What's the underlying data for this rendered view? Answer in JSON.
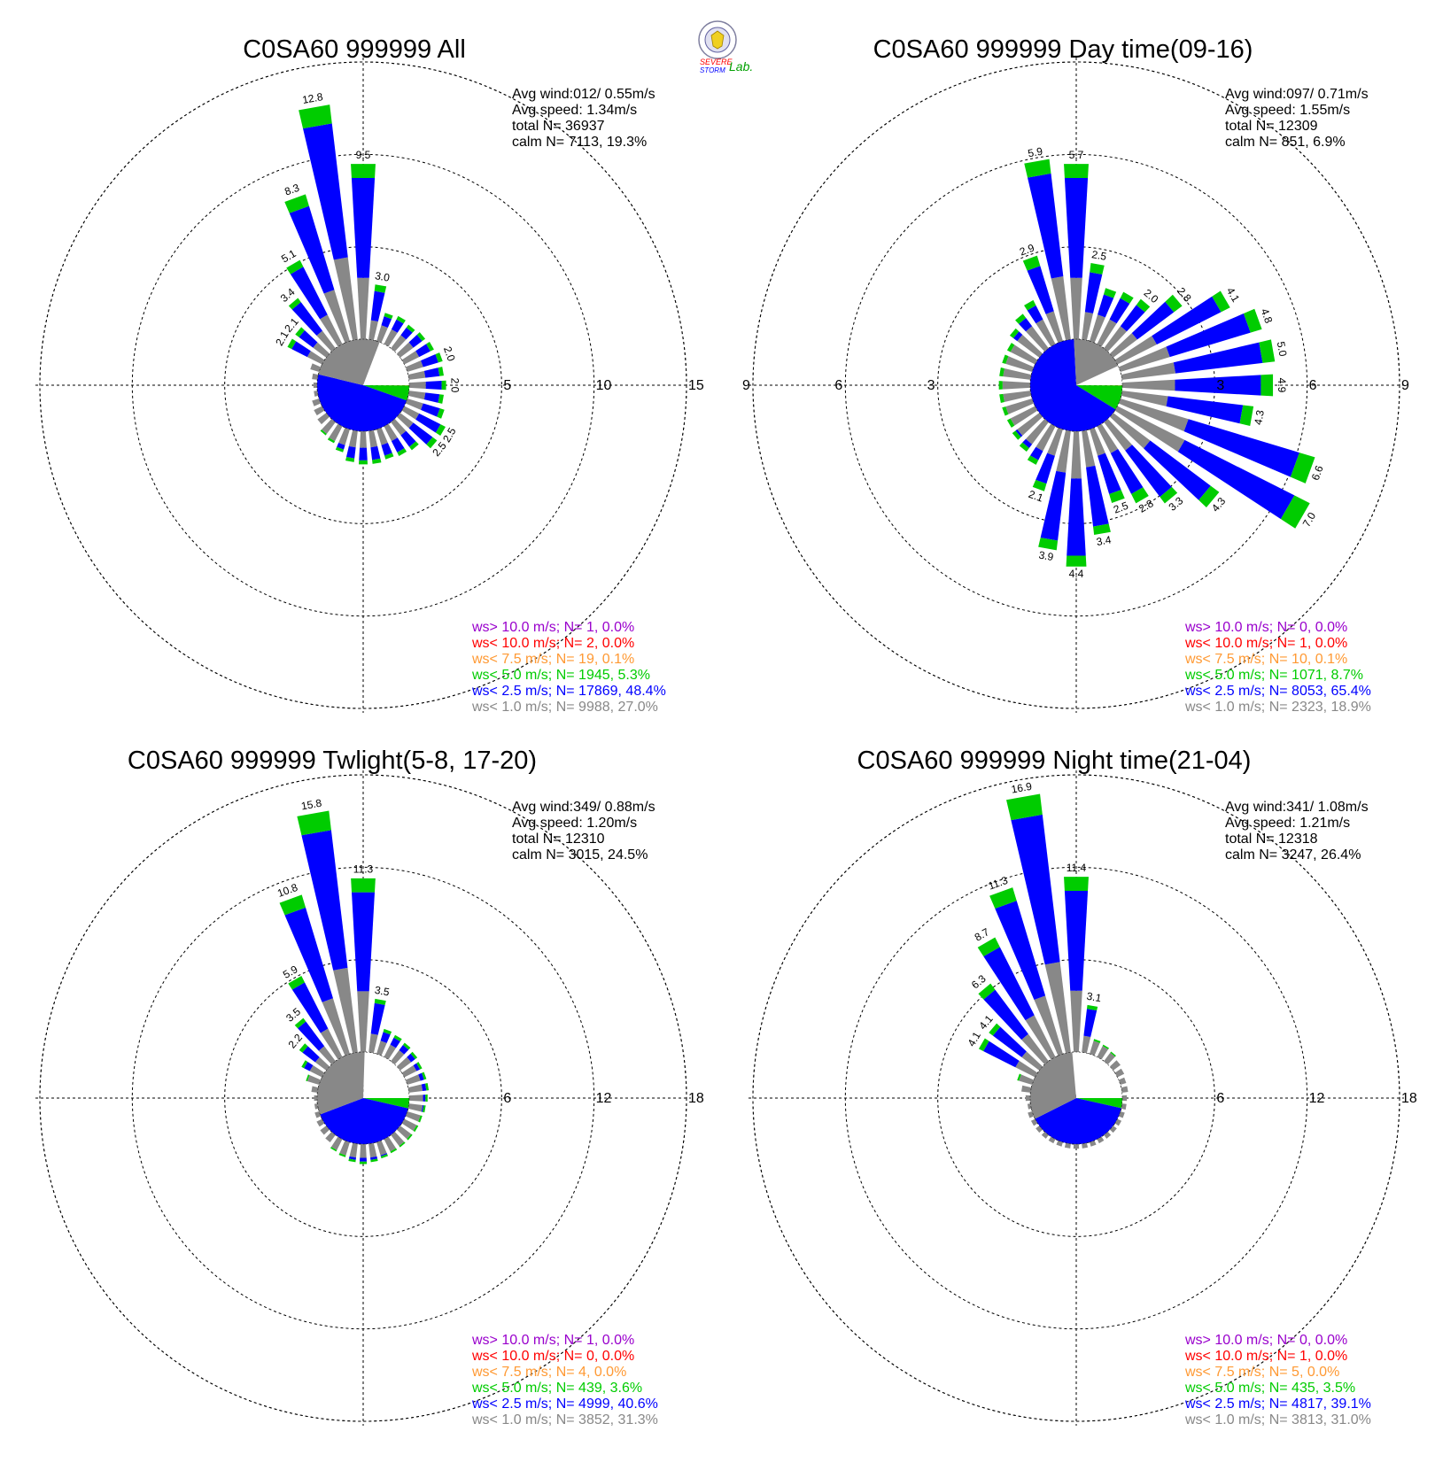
{
  "logo": {
    "text_line1": "SEVERE",
    "text_line2": "STORM",
    "text_lab": "Lab."
  },
  "colors": {
    "gt10": "#9900cc",
    "lt10": "#ff0000",
    "lt75": "#ff9933",
    "lt50": "#00cc00",
    "lt25": "#0000ff",
    "lt10ms": "#888888",
    "calm": "#ffffff",
    "grid": "#000000"
  },
  "chart_data": [
    {
      "type": "wind-rose",
      "title": "C0SA60 999999 All",
      "info": {
        "avg_wind": "Avg wind:012/ 0.55m/s",
        "avg_speed": "Avg speed: 1.34m/s",
        "total_n": "total N=       36937",
        "calm_n": "calm N=   7113,  19.3%"
      },
      "ring_values": [
        "5",
        "10",
        "15"
      ],
      "rmax": 15,
      "pie": {
        "gt10": 0.0,
        "lt10": 0.0,
        "lt75": 0.1,
        "lt50": 5.3,
        "lt25": 48.4,
        "lt10ms": 27.0,
        "calm": 19.3
      },
      "sectors": [
        {
          "dir": 0,
          "total": 9.5,
          "label": "9.5"
        },
        {
          "dir": 10,
          "total": 3.0,
          "label": "3.0"
        },
        {
          "dir": 20,
          "total": 1.6
        },
        {
          "dir": 30,
          "total": 1.7
        },
        {
          "dir": 40,
          "total": 1.6
        },
        {
          "dir": 50,
          "total": 1.7
        },
        {
          "dir": 60,
          "total": 1.8
        },
        {
          "dir": 70,
          "total": 2.0,
          "label": "2.0"
        },
        {
          "dir": 80,
          "total": 1.9
        },
        {
          "dir": 90,
          "total": 2.0,
          "label": "2.0"
        },
        {
          "dir": 100,
          "total": 1.9
        },
        {
          "dir": 110,
          "total": 2.1
        },
        {
          "dir": 120,
          "total": 2.5,
          "label": "2.5"
        },
        {
          "dir": 130,
          "total": 2.5,
          "label": "2.5"
        },
        {
          "dir": 140,
          "total": 1.9
        },
        {
          "dir": 150,
          "total": 1.8
        },
        {
          "dir": 160,
          "total": 1.7
        },
        {
          "dir": 170,
          "total": 1.8
        },
        {
          "dir": 180,
          "total": 1.8
        },
        {
          "dir": 190,
          "total": 1.7
        },
        {
          "dir": 200,
          "total": 1.3
        },
        {
          "dir": 210,
          "total": 1.0
        },
        {
          "dir": 220,
          "total": 0.8
        },
        {
          "dir": 230,
          "total": 0.6
        },
        {
          "dir": 240,
          "total": 0.5
        },
        {
          "dir": 250,
          "total": 0.4
        },
        {
          "dir": 260,
          "total": 0.2
        },
        {
          "dir": 270,
          "total": 0.2
        },
        {
          "dir": 280,
          "total": 0.3
        },
        {
          "dir": 290,
          "total": 0.5
        },
        {
          "dir": 300,
          "total": 2.1,
          "label": "2.1"
        },
        {
          "dir": 310,
          "total": 2.1,
          "label": "2.1"
        },
        {
          "dir": 320,
          "total": 3.4,
          "label": "3.4"
        },
        {
          "dir": 330,
          "total": 5.1,
          "label": "5.1"
        },
        {
          "dir": 340,
          "total": 8.3,
          "label": "8.3"
        },
        {
          "dir": 350,
          "total": 12.8,
          "label": "12.8"
        }
      ],
      "legend": [
        {
          "key": "gt10",
          "text": "ws> 10.0 m/s; N=     1,  0.0%"
        },
        {
          "key": "lt10",
          "text": "ws< 10.0 m/s; N=     2,  0.0%"
        },
        {
          "key": "lt75",
          "text": "ws<  7.5 m/s; N=    19,  0.1%"
        },
        {
          "key": "lt50",
          "text": "ws<  5.0 m/s; N=  1945,  5.3%"
        },
        {
          "key": "lt25",
          "text": "ws<  2.5 m/s; N= 17869, 48.4%"
        },
        {
          "key": "lt10ms",
          "text": "ws<  1.0 m/s; N=  9988, 27.0%"
        }
      ]
    },
    {
      "type": "wind-rose",
      "title": "C0SA60 999999 Day time(09-16)",
      "info": {
        "avg_wind": "Avg wind:097/ 0.71m/s",
        "avg_speed": "Avg speed: 1.55m/s",
        "total_n": "total N=       12309",
        "calm_n": "calm N=    851,   6.9%"
      },
      "ring_values": [
        "3",
        "6",
        "9"
      ],
      "rmax": 9,
      "pie": {
        "gt10": 0.0,
        "lt10": 0.0,
        "lt75": 0.1,
        "lt50": 8.7,
        "lt25": 65.4,
        "lt10ms": 18.9,
        "calm": 6.9
      },
      "sectors": [
        {
          "dir": 0,
          "total": 5.7,
          "label": "5.7"
        },
        {
          "dir": 10,
          "total": 2.5,
          "label": "2.5"
        },
        {
          "dir": 20,
          "total": 1.8
        },
        {
          "dir": 30,
          "total": 1.9
        },
        {
          "dir": 40,
          "total": 2.0,
          "label": "2.0"
        },
        {
          "dir": 50,
          "total": 2.8,
          "label": "2.8"
        },
        {
          "dir": 60,
          "total": 4.1,
          "label": "4.1"
        },
        {
          "dir": 70,
          "total": 4.8,
          "label": "4.8"
        },
        {
          "dir": 80,
          "total": 5.0,
          "label": "5.0"
        },
        {
          "dir": 90,
          "total": 4.9,
          "label": "4.9"
        },
        {
          "dir": 100,
          "total": 4.3,
          "label": "4.3"
        },
        {
          "dir": 110,
          "total": 6.6,
          "label": "6.6"
        },
        {
          "dir": 120,
          "total": 7.0,
          "label": "7.0"
        },
        {
          "dir": 130,
          "total": 4.3,
          "label": "4.3"
        },
        {
          "dir": 140,
          "total": 3.3,
          "label": "3.3"
        },
        {
          "dir": 150,
          "total": 2.8,
          "label": "2.8"
        },
        {
          "dir": 160,
          "total": 2.5,
          "label": "2.5"
        },
        {
          "dir": 170,
          "total": 3.4,
          "label": "3.4"
        },
        {
          "dir": 180,
          "total": 4.4,
          "label": "4.4"
        },
        {
          "dir": 190,
          "total": 3.9,
          "label": "3.9"
        },
        {
          "dir": 200,
          "total": 2.1,
          "label": "2.1"
        },
        {
          "dir": 210,
          "total": 1.4
        },
        {
          "dir": 220,
          "total": 1.2
        },
        {
          "dir": 230,
          "total": 1.1
        },
        {
          "dir": 240,
          "total": 1.0
        },
        {
          "dir": 250,
          "total": 1.0
        },
        {
          "dir": 260,
          "total": 1.0
        },
        {
          "dir": 270,
          "total": 1.0
        },
        {
          "dir": 280,
          "total": 1.0
        },
        {
          "dir": 290,
          "total": 1.0
        },
        {
          "dir": 300,
          "total": 1.0
        },
        {
          "dir": 310,
          "total": 1.2
        },
        {
          "dir": 320,
          "total": 1.4
        },
        {
          "dir": 330,
          "total": 1.6
        },
        {
          "dir": 340,
          "total": 2.9,
          "label": "2.9"
        },
        {
          "dir": 350,
          "total": 5.9,
          "label": "5.9"
        }
      ],
      "legend": [
        {
          "key": "gt10",
          "text": "ws> 10.0 m/s; N=     0,  0.0%"
        },
        {
          "key": "lt10",
          "text": "ws< 10.0 m/s; N=     1,  0.0%"
        },
        {
          "key": "lt75",
          "text": "ws<  7.5 m/s; N=    10,  0.1%"
        },
        {
          "key": "lt50",
          "text": "ws<  5.0 m/s; N=  1071,  8.7%"
        },
        {
          "key": "lt25",
          "text": "ws<  2.5 m/s; N=  8053, 65.4%"
        },
        {
          "key": "lt10ms",
          "text": "ws<  1.0 m/s; N=  2323, 18.9%"
        }
      ]
    },
    {
      "type": "wind-rose",
      "title": "C0SA60 999999 Twlight(5-8, 17-20)",
      "info": {
        "avg_wind": "Avg wind:349/ 0.88m/s",
        "avg_speed": "Avg speed: 1.20m/s",
        "total_n": "total N=       12310",
        "calm_n": "calm N=   3015,  24.5%"
      },
      "ring_values": [
        "6",
        "12",
        "18"
      ],
      "rmax": 18,
      "pie": {
        "gt10": 0.0,
        "lt10": 0.0,
        "lt75": 0.0,
        "lt50": 3.6,
        "lt25": 40.6,
        "lt10ms": 31.3,
        "calm": 24.5
      },
      "sectors": [
        {
          "dir": 0,
          "total": 11.3,
          "label": "11.3"
        },
        {
          "dir": 10,
          "total": 3.5,
          "label": "3.5"
        },
        {
          "dir": 20,
          "total": 1.7
        },
        {
          "dir": 30,
          "total": 1.6
        },
        {
          "dir": 40,
          "total": 1.5
        },
        {
          "dir": 50,
          "total": 1.4
        },
        {
          "dir": 60,
          "total": 1.3
        },
        {
          "dir": 70,
          "total": 1.3
        },
        {
          "dir": 80,
          "total": 1.3
        },
        {
          "dir": 90,
          "total": 1.2
        },
        {
          "dir": 100,
          "total": 1.1
        },
        {
          "dir": 110,
          "total": 1.0
        },
        {
          "dir": 120,
          "total": 1.0
        },
        {
          "dir": 130,
          "total": 0.9
        },
        {
          "dir": 140,
          "total": 0.9
        },
        {
          "dir": 150,
          "total": 1.0
        },
        {
          "dir": 160,
          "total": 1.1
        },
        {
          "dir": 170,
          "total": 1.2
        },
        {
          "dir": 180,
          "total": 1.3
        },
        {
          "dir": 190,
          "total": 1.2
        },
        {
          "dir": 200,
          "total": 1.0
        },
        {
          "dir": 210,
          "total": 0.8
        },
        {
          "dir": 220,
          "total": 0.6
        },
        {
          "dir": 230,
          "total": 0.5
        },
        {
          "dir": 240,
          "total": 0.4
        },
        {
          "dir": 250,
          "total": 0.3
        },
        {
          "dir": 260,
          "total": 0.2
        },
        {
          "dir": 270,
          "total": 0.2
        },
        {
          "dir": 280,
          "total": 0.4
        },
        {
          "dir": 290,
          "total": 0.8
        },
        {
          "dir": 300,
          "total": 1.5
        },
        {
          "dir": 310,
          "total": 2.2,
          "label": "2.2"
        },
        {
          "dir": 320,
          "total": 3.5,
          "label": "3.5"
        },
        {
          "dir": 330,
          "total": 5.9,
          "label": "5.9"
        },
        {
          "dir": 340,
          "total": 10.8,
          "label": "10.8"
        },
        {
          "dir": 350,
          "total": 15.8,
          "label": "15.8"
        }
      ],
      "legend": [
        {
          "key": "gt10",
          "text": "ws> 10.0 m/s; N=     1,  0.0%"
        },
        {
          "key": "lt10",
          "text": "ws< 10.0 m/s; N=     0,  0.0%"
        },
        {
          "key": "lt75",
          "text": "ws<  7.5 m/s; N=     4,  0.0%"
        },
        {
          "key": "lt50",
          "text": "ws<  5.0 m/s; N=   439,  3.6%"
        },
        {
          "key": "lt25",
          "text": "ws<  2.5 m/s; N=  4999, 40.6%"
        },
        {
          "key": "lt10ms",
          "text": "ws<  1.0 m/s; N=  3852, 31.3%"
        }
      ]
    },
    {
      "type": "wind-rose",
      "title": "C0SA60 999999 Night time(21-04)",
      "info": {
        "avg_wind": "Avg wind:341/ 1.08m/s",
        "avg_speed": "Avg speed: 1.21m/s",
        "total_n": "total N=       12318",
        "calm_n": "calm N=   3247,  26.4%"
      },
      "ring_values": [
        "6",
        "12",
        "18"
      ],
      "rmax": 18,
      "pie": {
        "gt10": 0.0,
        "lt10": 0.0,
        "lt75": 0.0,
        "lt50": 3.5,
        "lt25": 39.1,
        "lt10ms": 31.0,
        "calm": 26.4
      },
      "sectors": [
        {
          "dir": 0,
          "total": 11.4,
          "label": "11.4"
        },
        {
          "dir": 10,
          "total": 3.1,
          "label": "3.1"
        },
        {
          "dir": 20,
          "total": 1.0
        },
        {
          "dir": 30,
          "total": 0.8
        },
        {
          "dir": 40,
          "total": 0.7
        },
        {
          "dir": 50,
          "total": 0.6
        },
        {
          "dir": 60,
          "total": 0.5
        },
        {
          "dir": 70,
          "total": 0.4
        },
        {
          "dir": 80,
          "total": 0.4
        },
        {
          "dir": 90,
          "total": 0.3
        },
        {
          "dir": 100,
          "total": 0.3
        },
        {
          "dir": 110,
          "total": 0.3
        },
        {
          "dir": 120,
          "total": 0.3
        },
        {
          "dir": 130,
          "total": 0.3
        },
        {
          "dir": 140,
          "total": 0.3
        },
        {
          "dir": 150,
          "total": 0.3
        },
        {
          "dir": 160,
          "total": 0.3
        },
        {
          "dir": 170,
          "total": 0.3
        },
        {
          "dir": 180,
          "total": 0.3
        },
        {
          "dir": 190,
          "total": 0.3
        },
        {
          "dir": 200,
          "total": 0.3
        },
        {
          "dir": 210,
          "total": 0.3
        },
        {
          "dir": 220,
          "total": 0.3
        },
        {
          "dir": 230,
          "total": 0.3
        },
        {
          "dir": 240,
          "total": 0.3
        },
        {
          "dir": 250,
          "total": 0.3
        },
        {
          "dir": 260,
          "total": 0.2
        },
        {
          "dir": 270,
          "total": 0.3
        },
        {
          "dir": 280,
          "total": 0.6
        },
        {
          "dir": 290,
          "total": 1.0
        },
        {
          "dir": 300,
          "total": 4.1,
          "label": "4.1"
        },
        {
          "dir": 310,
          "total": 4.1,
          "label": "4.1"
        },
        {
          "dir": 320,
          "total": 6.3,
          "label": "6.3"
        },
        {
          "dir": 330,
          "total": 8.7,
          "label": "8.7"
        },
        {
          "dir": 340,
          "total": 11.3,
          "label": "11.3"
        },
        {
          "dir": 350,
          "total": 16.9,
          "label": "16.9"
        }
      ],
      "legend": [
        {
          "key": "gt10",
          "text": "ws> 10.0 m/s; N=     0,  0.0%"
        },
        {
          "key": "lt10",
          "text": "ws< 10.0 m/s; N=     1,  0.0%"
        },
        {
          "key": "lt75",
          "text": "ws<  7.5 m/s; N=     5,  0.0%"
        },
        {
          "key": "lt50",
          "text": "ws<  5.0 m/s; N=   435,  3.5%"
        },
        {
          "key": "lt25",
          "text": "ws<  2.5 m/s; N=  4817, 39.1%"
        },
        {
          "key": "lt10ms",
          "text": "ws<  1.0 m/s; N=  3813, 31.0%"
        }
      ]
    }
  ]
}
